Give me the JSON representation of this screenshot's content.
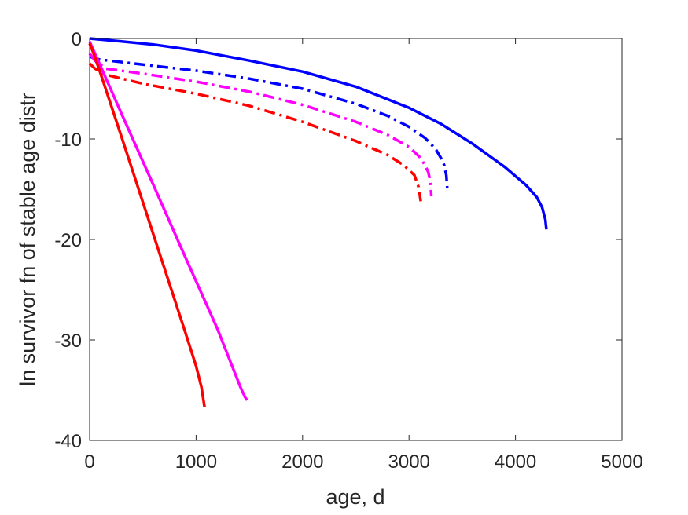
{
  "chart_data": {
    "type": "line",
    "xlabel": "age, d",
    "ylabel": "ln survivor fn of stable age distr",
    "xlim": [
      0,
      5000
    ],
    "ylim": [
      -40,
      0
    ],
    "xticks": [
      "0",
      "1000",
      "2000",
      "3000",
      "4000",
      "5000"
    ],
    "yticks": [
      "0",
      "-10",
      "-20",
      "-30",
      "-40"
    ],
    "grid": false,
    "legend": "none",
    "series": [
      {
        "color": "#0000ff",
        "style": "solid",
        "x": [
          0,
          300,
          600,
          1000,
          1500,
          2000,
          2500,
          3000,
          3300,
          3600,
          3900,
          4100,
          4200,
          4250,
          4280,
          4290
        ],
        "y": [
          0,
          -0.3,
          -0.6,
          -1.2,
          -2.2,
          -3.3,
          -4.8,
          -6.9,
          -8.5,
          -10.5,
          -12.8,
          -14.6,
          -15.8,
          -16.8,
          -18.0,
          -19.0
        ]
      },
      {
        "color": "#0000ff",
        "style": "dashdot",
        "x": [
          0,
          50,
          100,
          500,
          1000,
          1500,
          2000,
          2500,
          2800,
          3000,
          3150,
          3250,
          3300,
          3330,
          3350,
          3360
        ],
        "y": [
          -1.8,
          -2.0,
          -2.1,
          -2.6,
          -3.2,
          -4.0,
          -5.0,
          -6.5,
          -7.7,
          -8.8,
          -9.9,
          -11.0,
          -11.9,
          -12.6,
          -13.6,
          -15.0
        ]
      },
      {
        "color": "#ff00ff",
        "style": "dashdot",
        "x": [
          0,
          50,
          150,
          500,
          1000,
          1500,
          2000,
          2500,
          2800,
          3000,
          3100,
          3150,
          3180,
          3200,
          3210
        ],
        "y": [
          -1.5,
          -2.2,
          -3.0,
          -3.5,
          -4.3,
          -5.3,
          -6.6,
          -8.3,
          -9.6,
          -10.8,
          -11.8,
          -12.6,
          -13.3,
          -14.2,
          -15.7
        ]
      },
      {
        "color": "#ff0000",
        "style": "dashdot",
        "x": [
          0,
          50,
          150,
          500,
          1000,
          1500,
          2000,
          2500,
          2800,
          2950,
          3050,
          3090,
          3110
        ],
        "y": [
          -2.5,
          -3.0,
          -3.6,
          -4.5,
          -5.5,
          -6.7,
          -8.3,
          -10.2,
          -11.6,
          -12.6,
          -13.6,
          -14.8,
          -16.2
        ]
      },
      {
        "color": "#ff00ff",
        "style": "solid",
        "x": [
          0,
          20,
          80,
          300,
          600,
          900,
          1200,
          1420,
          1460,
          1480
        ],
        "y": [
          -0.3,
          -0.8,
          -2.2,
          -7.5,
          -14.6,
          -21.8,
          -28.9,
          -34.8,
          -35.7,
          -36.0
        ]
      },
      {
        "color": "#ff0000",
        "style": "solid",
        "x": [
          0,
          30,
          100,
          300,
          500,
          700,
          900,
          1000,
          1050,
          1080
        ],
        "y": [
          -0.5,
          -1.3,
          -3.4,
          -9.8,
          -16.3,
          -22.8,
          -29.3,
          -32.6,
          -34.7,
          -36.7
        ]
      }
    ]
  }
}
